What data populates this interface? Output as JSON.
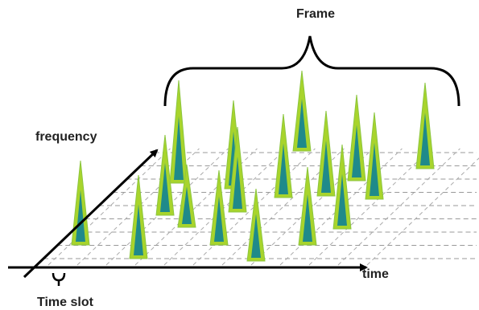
{
  "labels": {
    "frame": "Frame",
    "frequency": "frequency",
    "time": "time",
    "time_slot": "Time slot"
  }
}
